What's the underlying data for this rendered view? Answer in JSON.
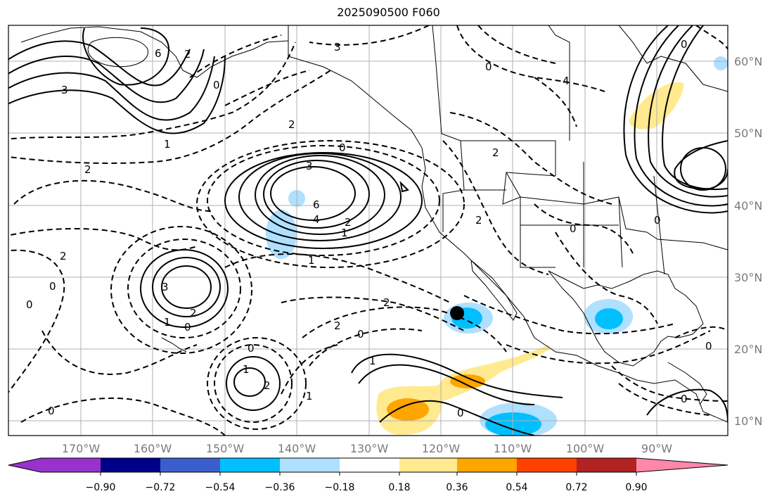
{
  "title": "2025090500 F060",
  "map": {
    "lon_labels": [
      "170°W",
      "160°W",
      "150°W",
      "140°W",
      "130°W",
      "120°W",
      "110°W",
      "100°W",
      "90°W"
    ],
    "lat_labels": [
      "60°N",
      "50°N",
      "40°N",
      "30°N",
      "20°N",
      "10°N"
    ],
    "contour_labels": [
      "3",
      "2",
      "1",
      "0",
      "2",
      "3",
      "6",
      "4",
      "1",
      "2",
      "1",
      "0",
      "2",
      "2",
      "3",
      "2",
      "1",
      "0",
      "1",
      "0",
      "0",
      "2",
      "3",
      "4",
      "6",
      "0",
      "0",
      "1",
      "0",
      "2",
      "0",
      "2",
      "2",
      "0",
      "1",
      "0",
      "0",
      "0",
      "2",
      "0",
      "0"
    ],
    "point_marker": "black dot"
  },
  "colorbar": {
    "ticks": [
      "−0.90",
      "−0.72",
      "−0.54",
      "−0.36",
      "−0.18",
      "0.18",
      "0.36",
      "0.54",
      "0.72",
      "0.90"
    ],
    "colors": [
      "#9932cc",
      "#00008b",
      "#3a5fcd",
      "#00bfff",
      "#afe0ff",
      "#ffffff",
      "#ffea8f",
      "#ffa500",
      "#ff4000",
      "#b22222",
      "#ff88aa"
    ]
  }
}
